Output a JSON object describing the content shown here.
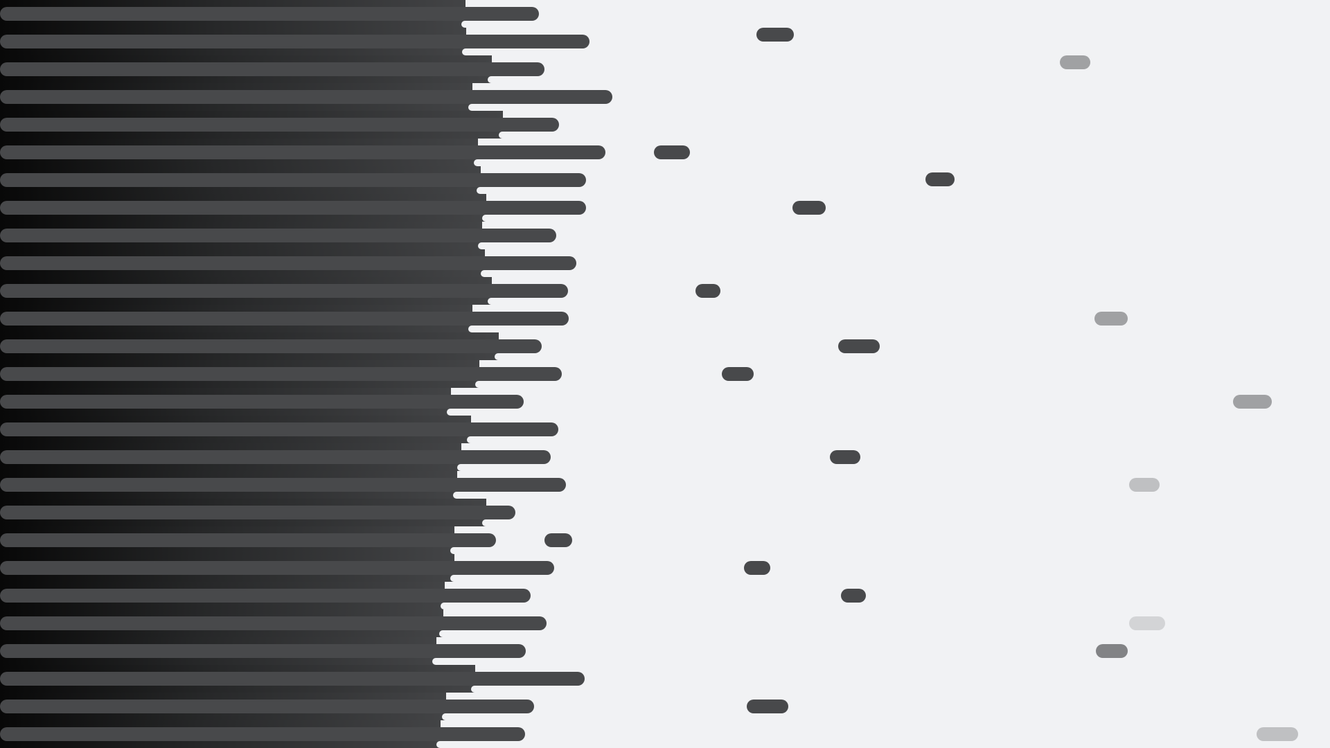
{
  "palette": {
    "background": "#f1f2f4",
    "dark_gradient_start": "#080808",
    "dark_gradient_mid": "#262728",
    "dark_gradient_end": "#434446",
    "pill_dark": "#48494b",
    "pill_mid": "#a0a1a3",
    "pill_light": "#bfc0c2",
    "pill_lighter": "#d3d4d6",
    "pill_gray": "#828385"
  }
}
